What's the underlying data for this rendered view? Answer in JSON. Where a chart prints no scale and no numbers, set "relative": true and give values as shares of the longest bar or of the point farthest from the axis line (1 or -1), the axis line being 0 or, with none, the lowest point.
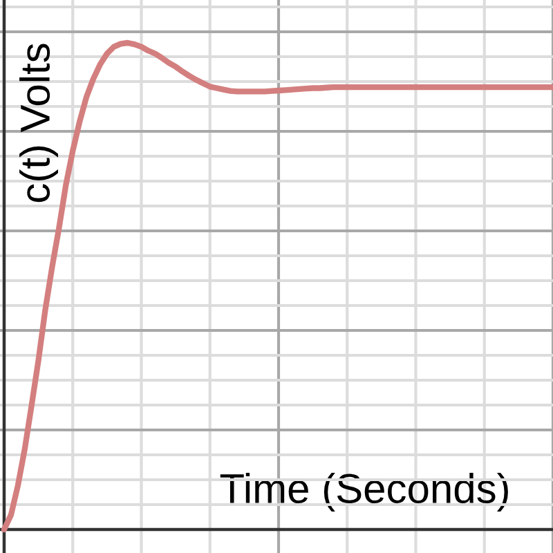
{
  "chart_data": {
    "type": "line",
    "xlabel": "Time (Seconds)",
    "ylabel": "c(t) Volts",
    "categories": [
      null,
      null,
      null,
      null,
      null,
      null,
      null,
      null,
      null,
      null,
      null,
      null,
      null,
      null,
      null,
      null,
      null,
      null,
      null,
      null,
      null,
      null,
      null,
      null,
      null,
      null,
      null,
      null,
      null,
      null,
      null,
      null,
      null,
      null,
      null,
      null,
      null,
      null,
      null,
      null,
      null,
      null,
      null,
      null,
      null,
      null,
      null,
      null,
      null,
      null,
      null,
      null,
      null,
      null,
      null,
      null,
      null,
      null,
      null,
      null,
      null,
      null,
      null,
      null,
      null,
      null,
      null,
      null,
      null,
      null,
      null,
      null,
      null,
      null,
      null,
      null,
      null,
      null,
      null,
      null,
      null
    ],
    "relative": true,
    "series": [
      {
        "color": "#d47f7f",
        "values": [
          0,
          0.03,
          0.09,
          0.165,
          0.255,
          0.348,
          0.452,
          0.54,
          0.62,
          0.708,
          0.778,
          0.838,
          0.889,
          0.926,
          0.956,
          0.978,
          0.992,
          0.998,
          1.0,
          0.997,
          0.992,
          0.984,
          0.978,
          0.969,
          0.959,
          0.951,
          0.941,
          0.932,
          0.924,
          0.917,
          0.91,
          0.907,
          0.904,
          0.901,
          0.9,
          0.9,
          0.9,
          0.9,
          0.9,
          0.901,
          0.902,
          0.903,
          0.904,
          0.905,
          0.906,
          0.907,
          0.907,
          0.908,
          0.909,
          0.909,
          0.909,
          0.909,
          0.909,
          0.909,
          0.909,
          0.909,
          0.909,
          0.909,
          0.909,
          0.909,
          0.909,
          0.909,
          0.909,
          0.909,
          0.909,
          0.909,
          0.909,
          0.909,
          0.909,
          0.909,
          0.909,
          0.909,
          0.909,
          0.909,
          0.909,
          0.909,
          0.909,
          0.909,
          0.909,
          0.909,
          0.909
        ]
      }
    ],
    "grid": true
  }
}
